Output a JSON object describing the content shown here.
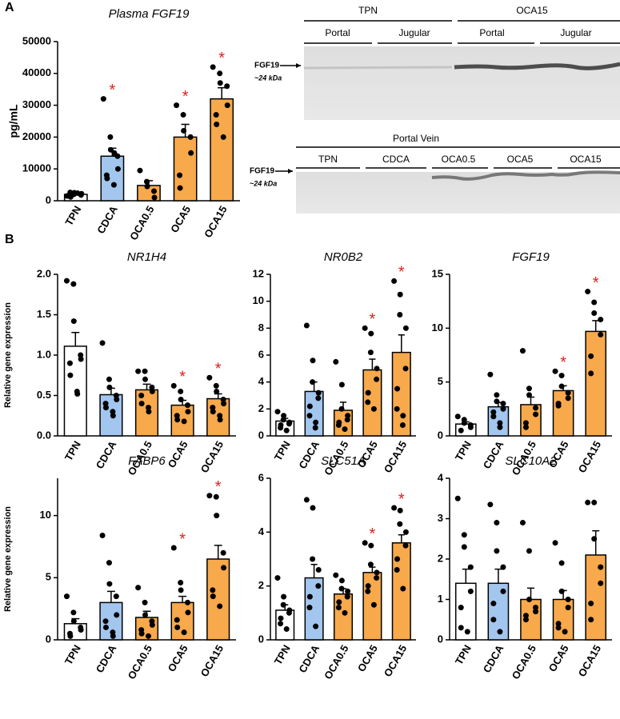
{
  "panel_labels": [
    "A",
    "B"
  ],
  "blot": {
    "top_groups": [
      "TPN",
      "OCA15"
    ],
    "top_sites": [
      "Portal",
      "Jugular",
      "Portal",
      "Jugular"
    ],
    "band_label": "FGF19",
    "size_label": "~24 kDa",
    "bottom_group": "Portal Vein",
    "bottom_lanes": [
      "TPN",
      "CDCA",
      "OCA0.5",
      "OCA5",
      "OCA15"
    ]
  },
  "chart_data": [
    {
      "type": "bar",
      "title": "Plasma FGF19",
      "ylabel": "pg/mL",
      "categories": [
        "TPN",
        "CDCA",
        "OCA0.5",
        "OCA5",
        "OCA15"
      ],
      "colors": [
        "#ffffff",
        "#a3c6ee",
        "#f7a94b",
        "#f7a94b",
        "#f7a94b"
      ],
      "values": [
        2000,
        14000,
        4800,
        20000,
        32000
      ],
      "errors": [
        300,
        2500,
        1500,
        4000,
        3500
      ],
      "points": [
        [
          1500,
          2000,
          2500,
          1800,
          2200,
          2600,
          1200,
          2400
        ],
        [
          32000,
          20000,
          16000,
          14000,
          10000,
          8000,
          7000,
          5000,
          15000
        ],
        [
          9500,
          6000,
          4500,
          3000,
          1000
        ],
        [
          30000,
          27000,
          22000,
          20000,
          15000,
          8000,
          4000
        ],
        [
          42000,
          40000,
          37000,
          36000,
          30000,
          27000,
          24000,
          20000
        ]
      ],
      "ylim": [
        0,
        50000
      ],
      "yticks": [
        0,
        10000,
        20000,
        30000,
        40000,
        50000
      ],
      "sig_label": "*",
      "sig": [
        false,
        true,
        false,
        true,
        true
      ]
    },
    {
      "type": "bar",
      "title": "NR1H4",
      "ylabel": "Relative gene expression",
      "categories": [
        "TPN",
        "CDCA",
        "OCA0.5",
        "OCA5",
        "OCA15"
      ],
      "colors": [
        "#ffffff",
        "#a3c6ee",
        "#f7a94b",
        "#f7a94b",
        "#f7a94b"
      ],
      "values": [
        1.11,
        0.51,
        0.57,
        0.38,
        0.46
      ],
      "errors": [
        0.17,
        0.08,
        0.07,
        0.06,
        0.06
      ],
      "points": [
        [
          1.92,
          1.88,
          1.42,
          1.0,
          0.95,
          0.9,
          0.75,
          0.55,
          0.52
        ],
        [
          1.15,
          0.7,
          0.6,
          0.5,
          0.45,
          0.4,
          0.35,
          0.3,
          0.25
        ],
        [
          0.8,
          0.8,
          0.7,
          0.6,
          0.55,
          0.5,
          0.4,
          0.35,
          0.3
        ],
        [
          0.62,
          0.55,
          0.45,
          0.38,
          0.3,
          0.25,
          0.2,
          0.18
        ],
        [
          0.72,
          0.62,
          0.55,
          0.45,
          0.4,
          0.35,
          0.3,
          0.25,
          0.2
        ]
      ],
      "ylim": [
        0,
        2
      ],
      "yticks": [
        {
          "value": 0,
          "label": "0.0"
        },
        {
          "value": 0.5,
          "label": "0.5"
        },
        {
          "value": 1,
          "label": "1.0"
        },
        {
          "value": 1.5,
          "label": "1.5"
        },
        {
          "value": 2,
          "label": "2.0"
        }
      ],
      "sig_label": "*",
      "sig": [
        false,
        false,
        false,
        true,
        true
      ]
    },
    {
      "type": "bar",
      "title": "NR0B2",
      "categories": [
        "TPN",
        "CDCA",
        "OCA0.5",
        "OCA5",
        "OCA15"
      ],
      "colors": [
        "#ffffff",
        "#a3c6ee",
        "#f7a94b",
        "#f7a94b",
        "#f7a94b"
      ],
      "values": [
        1.1,
        3.3,
        1.9,
        4.9,
        6.2
      ],
      "errors": [
        0.2,
        0.7,
        0.6,
        0.8,
        1.3
      ],
      "points": [
        [
          1.8,
          1.5,
          1.2,
          1.0,
          0.9,
          0.8,
          0.6,
          0.4
        ],
        [
          8.2,
          5.6,
          4.0,
          3.2,
          2.8,
          2.2,
          1.5,
          1.0,
          0.6
        ],
        [
          5.5,
          3.8,
          2.0,
          1.5,
          1.2,
          1.0,
          0.8,
          0.5
        ],
        [
          8.0,
          7.6,
          6.2,
          5.0,
          4.2,
          3.2,
          2.5,
          2.0
        ],
        [
          11.5,
          10.5,
          9.0,
          8.0,
          5.0,
          3.5,
          2.0,
          1.5,
          0.8
        ]
      ],
      "ylim": [
        0,
        12
      ],
      "yticks": [
        0,
        2,
        4,
        6,
        8,
        10,
        12
      ],
      "sig_label": "*",
      "sig": [
        false,
        false,
        false,
        true,
        true
      ]
    },
    {
      "type": "bar",
      "title": "FGF19",
      "categories": [
        "TPN",
        "CDCA",
        "OCA0.5",
        "OCA5",
        "OCA15"
      ],
      "colors": [
        "#ffffff",
        "#a3c6ee",
        "#f7a94b",
        "#f7a94b",
        "#f7a94b"
      ],
      "values": [
        1.1,
        2.7,
        2.9,
        4.2,
        9.7
      ],
      "errors": [
        0.2,
        0.4,
        0.7,
        0.45,
        1.0
      ],
      "points": [
        [
          1.8,
          1.5,
          1.2,
          1.0,
          0.8,
          0.5
        ],
        [
          5.7,
          3.8,
          3.2,
          3.0,
          2.5,
          2.2,
          1.8,
          1.2,
          0.8
        ],
        [
          7.9,
          4.4,
          3.8,
          2.6,
          2.0,
          1.2,
          0.8
        ],
        [
          6.0,
          5.6,
          4.6,
          4.0,
          3.5,
          3.0,
          2.8
        ],
        [
          13.4,
          12.4,
          11.4,
          10.8,
          9.4,
          7.4,
          5.8
        ]
      ],
      "ylim": [
        0,
        15
      ],
      "yticks": [
        0,
        5,
        10,
        15
      ],
      "sig_label": "*",
      "sig": [
        false,
        false,
        false,
        true,
        true
      ]
    },
    {
      "type": "bar",
      "title": "FABP6",
      "ylabel": "Relative gene expression",
      "categories": [
        "TPN",
        "CDCA",
        "OCA0.5",
        "OCA5",
        "OCA15"
      ],
      "colors": [
        "#ffffff",
        "#a3c6ee",
        "#f7a94b",
        "#f7a94b",
        "#f7a94b"
      ],
      "values": [
        1.3,
        3.0,
        1.8,
        3.0,
        6.5
      ],
      "errors": [
        0.4,
        0.9,
        0.5,
        0.5,
        1.1
      ],
      "points": [
        [
          3.5,
          2.2,
          1.5,
          1.0,
          0.8,
          0.5,
          0.3
        ],
        [
          8.4,
          6.2,
          4.5,
          3.5,
          2.0,
          1.5,
          1.0,
          0.6,
          0.3
        ],
        [
          4.2,
          3.0,
          2.0,
          1.5,
          1.2,
          0.8,
          0.5,
          0.3
        ],
        [
          7.4,
          4.6,
          4.0,
          3.0,
          2.2,
          1.6,
          1.0,
          0.6
        ],
        [
          11.6,
          11.5,
          10.0,
          7.0,
          5.8,
          4.0,
          3.5,
          2.7
        ]
      ],
      "ylim": [
        0,
        13
      ],
      "yticks": [
        0,
        5,
        10
      ],
      "sig_label": "*",
      "sig": [
        false,
        false,
        false,
        true,
        true
      ]
    },
    {
      "type": "bar",
      "title": "SLC51A",
      "categories": [
        "TPN",
        "CDCA",
        "OCA0.5",
        "OCA5",
        "OCA15"
      ],
      "colors": [
        "#ffffff",
        "#a3c6ee",
        "#f7a94b",
        "#f7a94b",
        "#f7a94b"
      ],
      "values": [
        1.1,
        2.3,
        1.7,
        2.5,
        3.6
      ],
      "errors": [
        0.2,
        0.5,
        0.2,
        0.2,
        0.3
      ],
      "points": [
        [
          2.3,
          1.6,
          1.3,
          1.1,
          1.0,
          0.8,
          0.6,
          0.4
        ],
        [
          5.2,
          4.9,
          3.0,
          2.6,
          2.0,
          1.6,
          1.2,
          0.5
        ],
        [
          2.4,
          2.2,
          1.9,
          1.8,
          1.6,
          1.4,
          1.2,
          1.0
        ],
        [
          3.6,
          3.5,
          2.8,
          2.5,
          2.3,
          2.0,
          1.8,
          1.3
        ],
        [
          4.9,
          4.8,
          4.3,
          4.0,
          3.5,
          3.0,
          2.6,
          1.9
        ]
      ],
      "ylim": [
        0,
        6
      ],
      "yticks": [
        0,
        2,
        4,
        6
      ],
      "sig_label": "*",
      "sig": [
        false,
        false,
        false,
        true,
        true
      ]
    },
    {
      "type": "bar",
      "title": "SLC10A2",
      "categories": [
        "TPN",
        "CDCA",
        "OCA0.5",
        "OCA5",
        "OCA15"
      ],
      "colors": [
        "#ffffff",
        "#a3c6ee",
        "#f7a94b",
        "#f7a94b",
        "#f7a94b"
      ],
      "values": [
        1.4,
        1.4,
        1.0,
        1.0,
        2.1
      ],
      "errors": [
        0.35,
        0.35,
        0.28,
        0.22,
        0.6
      ],
      "points": [
        [
          3.5,
          2.6,
          2.3,
          1.8,
          1.2,
          0.8,
          0.3,
          0.2
        ],
        [
          3.35,
          2.9,
          2.2,
          1.8,
          1.2,
          0.9,
          0.5,
          0.2
        ],
        [
          2.9,
          2.2,
          1.0,
          0.8,
          0.7,
          0.6,
          0.5
        ],
        [
          2.4,
          1.9,
          1.2,
          1.0,
          0.8,
          0.4,
          0.3,
          0.2
        ],
        [
          3.4,
          3.4,
          2.5,
          1.8,
          1.4,
          0.9,
          0.5
        ]
      ],
      "ylim": [
        0,
        4
      ],
      "yticks": [
        0,
        1,
        2,
        3,
        4
      ],
      "sig_label": "*",
      "sig": [
        false,
        false,
        false,
        false,
        false
      ]
    }
  ]
}
